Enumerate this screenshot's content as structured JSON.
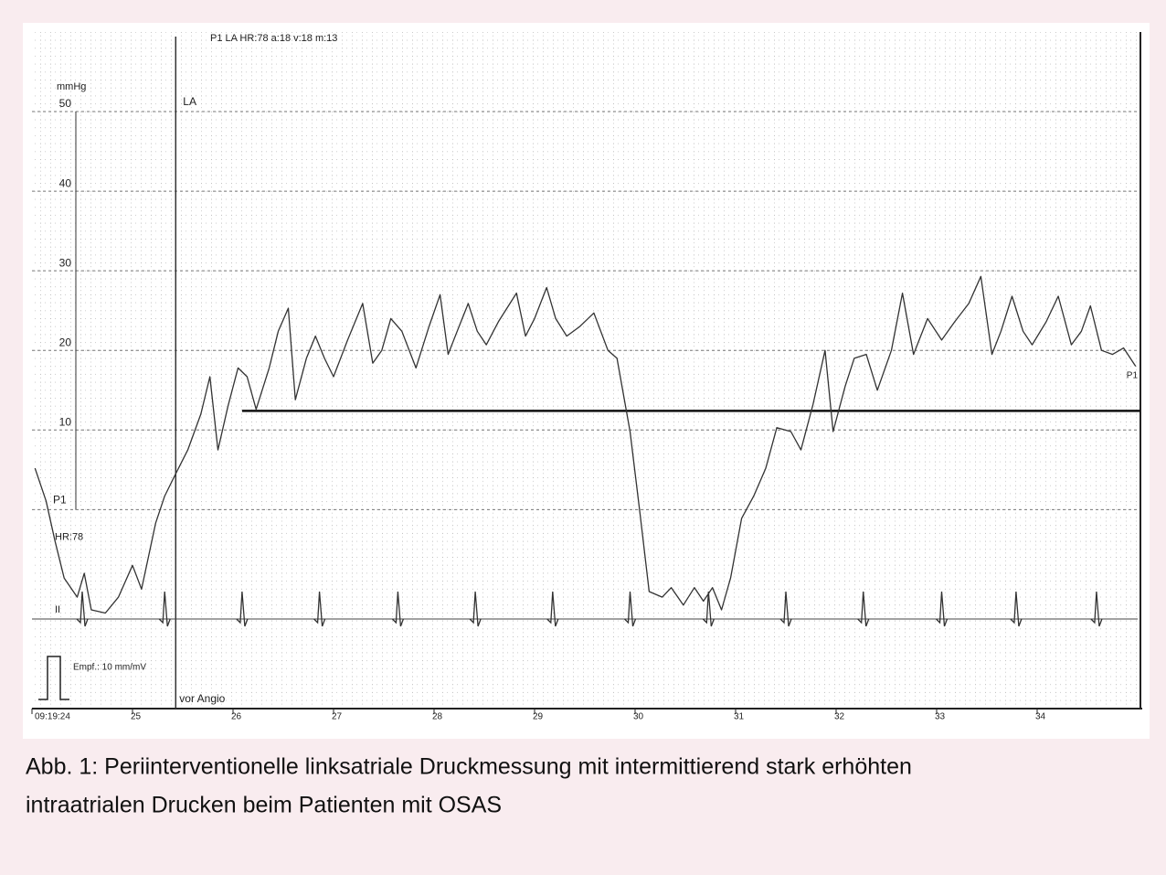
{
  "chart_data": {
    "type": "line",
    "title": "P1 LA HR:78 a:18 v:18 m:13",
    "y_label": "mmHg",
    "ylim": [
      -25,
      60
    ],
    "yticks": [
      10,
      20,
      30,
      40,
      50
    ],
    "xlim": [
      24,
      35
    ],
    "xticks": [
      {
        "value": 24,
        "label": "09:19:24"
      },
      25,
      26,
      27,
      28,
      29,
      30,
      31,
      32,
      33,
      34
    ],
    "grid": true,
    "series": [
      {
        "color": "#333333",
        "x": [
          24.03,
          24.14,
          24.23,
          24.32,
          24.45,
          24.52,
          24.59,
          24.73,
          24.86,
          25.0,
          25.09,
          25.23,
          25.32,
          25.41,
          25.55,
          25.68,
          25.77,
          25.85,
          25.95,
          26.05,
          26.14,
          26.23,
          26.36,
          26.45,
          26.55,
          26.62,
          26.73,
          26.82,
          26.91,
          27.0,
          27.14,
          27.29,
          27.39,
          27.48,
          27.57,
          27.68,
          27.82,
          27.95,
          28.06,
          28.14,
          28.23,
          28.34,
          28.43,
          28.52,
          28.64,
          28.82,
          28.91,
          29.0,
          29.12,
          29.21,
          29.32,
          29.45,
          29.59,
          29.73,
          29.82,
          29.95,
          30.05,
          30.14,
          30.27,
          30.36,
          30.48,
          30.59,
          30.68,
          30.77,
          30.86,
          30.95,
          31.06,
          31.18,
          31.3,
          31.41,
          31.55,
          31.65,
          31.77,
          31.89,
          31.97,
          32.09,
          32.18,
          32.3,
          32.41,
          32.55,
          32.66,
          32.77,
          32.91,
          33.05,
          33.18,
          33.32,
          33.44,
          33.55,
          33.64,
          33.75,
          33.86,
          33.95,
          34.09,
          34.21,
          34.34,
          34.44,
          34.53,
          34.64,
          34.75,
          34.86,
          34.98
        ],
        "values": [
          5.2,
          1.1,
          -4,
          -8.6,
          -11,
          -8,
          -12.6,
          -13,
          -11,
          -7,
          -10,
          -1.7,
          1.7,
          4,
          7.5,
          12,
          16.7,
          7.5,
          13,
          17.8,
          16.7,
          12.6,
          17.8,
          22.4,
          25.3,
          13.8,
          19,
          21.8,
          19,
          16.7,
          21.3,
          25.9,
          18.4,
          20,
          24,
          22.4,
          17.8,
          23,
          27,
          19.5,
          22.4,
          25.9,
          22.4,
          20.7,
          23.6,
          27.2,
          21.8,
          24,
          27.9,
          24,
          21.8,
          23,
          24.7,
          20,
          19,
          9.8,
          -0.6,
          -10.3,
          -11,
          -9.8,
          -12,
          -9.8,
          -11.5,
          -9.8,
          -12.6,
          -8.6,
          -1.1,
          1.7,
          5.2,
          10.3,
          9.8,
          7.5,
          13.2,
          20,
          9.8,
          15.5,
          19,
          19.5,
          15,
          20,
          27.2,
          19.5,
          24,
          21.3,
          23.6,
          25.9,
          29.3,
          19.5,
          22.4,
          26.8,
          22.4,
          20.7,
          23.6,
          26.8,
          20.7,
          22.4,
          25.6,
          20,
          19.5,
          20.3,
          18
        ]
      }
    ],
    "mean_line": {
      "value": 12.4,
      "x_start": 26.09
    },
    "baseline_label": "P1",
    "end_label": "P1",
    "hr_label": "HR:78",
    "marker": {
      "x": 25.43,
      "top_label": "LA",
      "bottom_label": "vor Angio"
    },
    "ecg": {
      "label": "II",
      "beats": [
        24.5,
        25.32,
        26.09,
        26.86,
        27.64,
        28.41,
        29.18,
        29.95,
        30.73,
        31.5,
        32.27,
        33.05,
        33.79,
        34.59
      ]
    },
    "calibration_label": "Empf.: 10 mm/mV"
  },
  "caption": [
    "Abb. 1: Periinterventionelle linksatriale Druckmessung mit intermittierend stark erhöhten",
    "intraatrialen Drucken beim Patienten mit OSAS"
  ]
}
